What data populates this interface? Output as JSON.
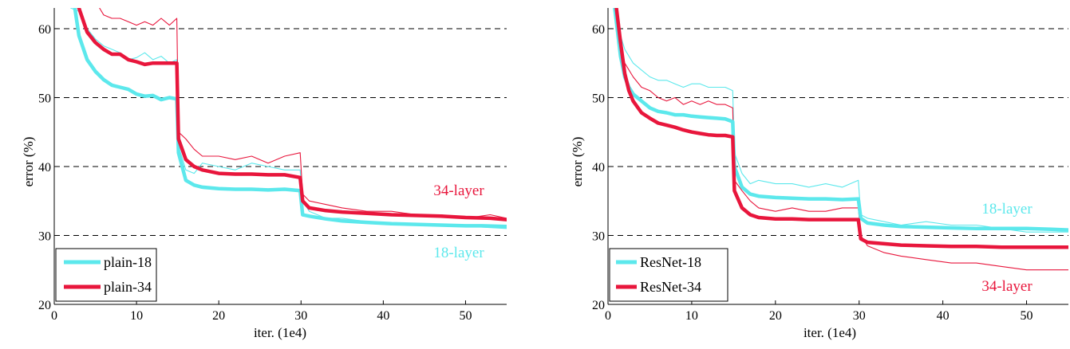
{
  "colors": {
    "cyan": "#5ce8ec",
    "red": "#e8163c",
    "grid": "#000000"
  },
  "chart_data": [
    {
      "type": "line",
      "title": "",
      "xlabel": "iter. (1e4)",
      "ylabel": "error (%)",
      "xlim": [
        0,
        55
      ],
      "ylim": [
        20,
        63
      ],
      "xticks": [
        "0",
        "10",
        "20",
        "30",
        "40",
        "50"
      ],
      "yticks": [
        "20",
        "30",
        "40",
        "50",
        "60"
      ],
      "grid": "horizontal dashed",
      "legend": {
        "placement": "bottom-left",
        "entries": [
          "plain-18",
          "plain-34"
        ]
      },
      "annotations": [
        {
          "text": "34-layer",
          "color": "red",
          "x": 50,
          "y": 37.5
        },
        {
          "text": "18-layer",
          "color": "cyan",
          "x": 50,
          "y": 28.8
        }
      ],
      "series": [
        {
          "name": "plain-18",
          "color": "cyan",
          "style": "thick",
          "x": [
            2.5,
            3,
            4,
            5,
            6,
            7,
            8,
            9,
            10,
            11,
            12,
            13,
            14,
            14.9,
            15.1,
            16,
            17,
            18,
            20,
            22,
            24,
            26,
            28,
            29.9,
            30.2,
            31,
            33,
            35,
            38,
            41,
            44,
            47,
            50,
            52,
            55
          ],
          "y": [
            63,
            59,
            55.5,
            53.8,
            52.6,
            51.8,
            51.5,
            51.2,
            50.5,
            50.2,
            50.3,
            49.7,
            50,
            49.8,
            42,
            38,
            37.3,
            37,
            36.8,
            36.7,
            36.7,
            36.6,
            36.7,
            36.5,
            33,
            32.8,
            32.4,
            32.1,
            31.9,
            31.7,
            31.6,
            31.5,
            31.4,
            31.4,
            31.3
          ]
        },
        {
          "name": "plain-34",
          "color": "red",
          "style": "thick",
          "x": [
            3,
            4,
            5,
            6,
            7,
            8,
            9,
            10,
            11,
            12,
            13,
            14,
            14.9,
            15.1,
            16,
            17,
            18,
            20,
            22,
            24,
            26,
            28,
            29.9,
            30.2,
            31,
            33,
            35,
            38,
            41,
            44,
            47,
            50,
            53,
            55
          ],
          "y": [
            63,
            59.5,
            58,
            57,
            56.3,
            56.3,
            55.5,
            55.2,
            54.8,
            55,
            55,
            55,
            55,
            44,
            41,
            40,
            39.5,
            39,
            38.9,
            38.9,
            38.8,
            38.8,
            38.4,
            35,
            34,
            33.6,
            33.4,
            33.2,
            33,
            32.9,
            32.8,
            32.6,
            32.5,
            32.3
          ]
        },
        {
          "name": "",
          "color": "cyan",
          "style": "thin",
          "x": [
            2,
            3,
            4,
            5,
            6,
            7,
            8,
            9,
            10,
            11,
            12,
            13,
            14,
            14.9,
            15.1,
            16,
            17,
            18,
            20,
            22,
            24,
            26,
            28,
            29.9,
            30.2,
            31,
            33,
            35,
            38,
            41,
            44,
            47,
            50,
            52,
            55
          ],
          "y": [
            63,
            62.5,
            60,
            58.5,
            57.5,
            57,
            56.5,
            55.5,
            55.8,
            56.5,
            55.5,
            56,
            55,
            55.5,
            43,
            39.5,
            39,
            40.5,
            40,
            39.5,
            40.5,
            40,
            39.5,
            39.5,
            35,
            33.5,
            32.5,
            32.5,
            32,
            31.8,
            31.5,
            31.5,
            31.5,
            31.2,
            31
          ]
        },
        {
          "name": "",
          "color": "red",
          "style": "thin",
          "x": [
            5.5,
            6,
            7,
            8,
            9,
            10,
            11,
            12,
            13,
            14,
            14.9,
            15.1,
            16,
            17,
            18,
            20,
            22,
            24,
            26,
            28,
            29.9,
            30.2,
            31,
            33,
            35,
            38,
            41,
            44,
            47,
            50,
            53,
            55
          ],
          "y": [
            63,
            62,
            61.5,
            61.5,
            61,
            60.5,
            61,
            60.5,
            61.5,
            60.5,
            61.5,
            45,
            44,
            42.5,
            41.5,
            41.5,
            41,
            41.5,
            40.5,
            41.5,
            42,
            36,
            35,
            34.5,
            34,
            33.5,
            33.5,
            33,
            33,
            32.5,
            33,
            32.5
          ]
        }
      ]
    },
    {
      "type": "line",
      "title": "",
      "xlabel": "iter. (1e4)",
      "ylabel": "error (%)",
      "xlim": [
        0,
        55
      ],
      "ylim": [
        20,
        63
      ],
      "xticks": [
        "0",
        "10",
        "20",
        "30",
        "40",
        "50"
      ],
      "yticks": [
        "20",
        "30",
        "40",
        "50",
        "60"
      ],
      "grid": "horizontal dashed",
      "legend": {
        "placement": "bottom-left",
        "entries": [
          "ResNet-18",
          "ResNet-34"
        ]
      },
      "annotations": [
        {
          "text": "18-layer",
          "color": "cyan",
          "x": 50,
          "y": 33.7
        },
        {
          "text": "34-layer",
          "color": "red",
          "x": 50,
          "y": 22.5
        }
      ],
      "series": [
        {
          "name": "ResNet-18",
          "color": "cyan",
          "style": "thick",
          "x": [
            0.8,
            1.5,
            2,
            2.5,
            3,
            4,
            5,
            6,
            7,
            8,
            9,
            10,
            11,
            12,
            13,
            14,
            14.9,
            15.1,
            16,
            17,
            18,
            20,
            22,
            24,
            26,
            28,
            29.9,
            30.2,
            31,
            33,
            35,
            38,
            41,
            44,
            47,
            50,
            53,
            55
          ],
          "y": [
            63,
            56,
            53,
            51.5,
            50.5,
            49.5,
            48.5,
            48,
            47.8,
            47.5,
            47.5,
            47.3,
            47.2,
            47.1,
            47,
            46.9,
            46.5,
            40,
            37,
            36,
            35.7,
            35.5,
            35.4,
            35.3,
            35.3,
            35.2,
            35.3,
            32.5,
            31.8,
            31.5,
            31.3,
            31.2,
            31.1,
            31,
            31,
            31,
            30.9,
            30.8
          ]
        },
        {
          "name": "ResNet-34",
          "color": "red",
          "style": "thick",
          "x": [
            1,
            1.5,
            2,
            2.5,
            3,
            4,
            5,
            6,
            7,
            8,
            9,
            10,
            11,
            12,
            13,
            14,
            14.9,
            15.1,
            16,
            17,
            18,
            20,
            22,
            24,
            26,
            28,
            29.9,
            30.2,
            31,
            33,
            35,
            38,
            41,
            44,
            47,
            50,
            53,
            55
          ],
          "y": [
            63,
            58,
            53.5,
            51,
            49.5,
            47.8,
            47,
            46.3,
            46,
            45.7,
            45.3,
            45,
            44.8,
            44.6,
            44.5,
            44.5,
            44.3,
            36.5,
            34,
            33,
            32.6,
            32.4,
            32.4,
            32.3,
            32.3,
            32.3,
            32.3,
            29.5,
            29,
            28.8,
            28.6,
            28.5,
            28.4,
            28.4,
            28.3,
            28.3,
            28.3,
            28.3
          ]
        },
        {
          "name": "",
          "color": "cyan",
          "style": "thin",
          "x": [
            0.8,
            1.5,
            2,
            3,
            4,
            5,
            6,
            7,
            8,
            9,
            10,
            11,
            12,
            13,
            14,
            14.9,
            15.1,
            16,
            17,
            18,
            20,
            22,
            24,
            26,
            28,
            29.9,
            30.2,
            31,
            33,
            35,
            38,
            41,
            44,
            47,
            50,
            52,
            55
          ],
          "y": [
            63,
            59,
            57,
            55,
            54,
            53,
            52.5,
            52.5,
            52,
            51.5,
            52,
            52,
            51.5,
            51.5,
            51.5,
            51,
            42,
            39,
            37.5,
            38,
            37.5,
            37.5,
            37,
            37.5,
            37,
            38,
            33,
            32.5,
            32,
            31.5,
            32,
            31.5,
            31.5,
            31,
            30.5,
            30.5,
            30.5
          ]
        },
        {
          "name": "",
          "color": "red",
          "style": "thin",
          "x": [
            0.9,
            1.5,
            2,
            3,
            4,
            5,
            6,
            7,
            8,
            9,
            10,
            11,
            12,
            13,
            14,
            14.9,
            15.1,
            16,
            17,
            18,
            20,
            22,
            24,
            26,
            28,
            29.9,
            30.2,
            31,
            33,
            35,
            38,
            41,
            44,
            47,
            50,
            53,
            55
          ],
          "y": [
            63,
            58,
            55,
            53,
            51.5,
            51,
            50,
            49.5,
            50,
            49,
            49.5,
            49,
            49.5,
            49,
            49,
            48.5,
            38,
            36.5,
            35,
            34,
            33.5,
            34,
            33.5,
            33.5,
            34,
            34,
            30,
            28.5,
            27.5,
            27,
            26.5,
            26,
            26,
            25.5,
            25,
            25,
            25
          ]
        }
      ]
    }
  ]
}
